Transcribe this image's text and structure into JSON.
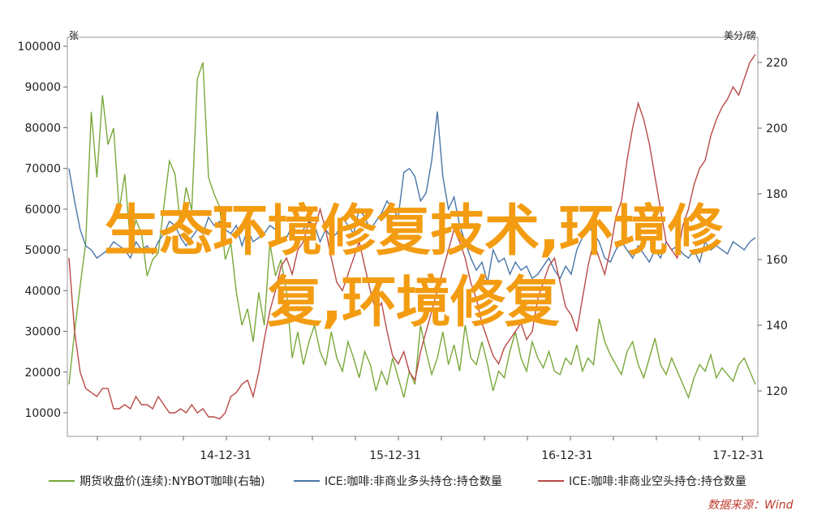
{
  "overlay": {
    "line1": "生态环境修复技术,环境修",
    "line2": "复,环境修复",
    "color": "#f39c12"
  },
  "source": "数据来源：Wind",
  "chart_data": {
    "type": "line",
    "title": "",
    "y_left": {
      "label": "张",
      "range": [
        5000,
        100000
      ],
      "ticks": [
        10000,
        20000,
        30000,
        40000,
        50000,
        60000,
        70000,
        80000,
        90000,
        100000
      ]
    },
    "y_right": {
      "label": "美分/磅",
      "range": [
        110,
        224
      ],
      "ticks": [
        120,
        140,
        160,
        180,
        200,
        220
      ]
    },
    "x_ticks": [
      "14-12-31",
      "15-12-31",
      "16-12-31",
      "17-12-31"
    ],
    "grid": false,
    "legend_position": "bottom",
    "series": [
      {
        "name": "期货收盘价(连续):NYBOT咖啡(右轴)",
        "axis": "right",
        "color": "#7aa83a",
        "values": [
          122,
          138,
          152,
          165,
          205,
          185,
          210,
          195,
          200,
          175,
          186,
          165,
          172,
          168,
          155,
          160,
          162,
          176,
          190,
          186,
          170,
          182,
          175,
          215,
          220,
          185,
          180,
          176,
          160,
          165,
          150,
          140,
          145,
          135,
          150,
          140,
          165,
          155,
          160,
          150,
          130,
          138,
          128,
          135,
          140,
          132,
          128,
          138,
          130,
          126,
          135,
          130,
          124,
          132,
          128,
          120,
          126,
          122,
          130,
          124,
          118,
          126,
          122,
          140,
          132,
          125,
          130,
          138,
          128,
          134,
          126,
          140,
          130,
          128,
          135,
          128,
          120,
          126,
          124,
          132,
          138,
          130,
          126,
          135,
          130,
          127,
          132,
          126,
          125,
          130,
          128,
          134,
          126,
          130,
          128,
          142,
          135,
          131,
          128,
          125,
          132,
          135,
          128,
          124,
          130,
          136,
          128,
          125,
          130,
          126,
          122,
          118,
          124,
          128,
          126,
          131,
          124,
          127,
          125,
          123,
          128,
          130,
          126,
          122
        ]
      },
      {
        "name": "ICE:咖啡:非商业多头持仓:持仓数量",
        "axis": "left",
        "color": "#4a76a8",
        "values": [
          70000,
          62000,
          55000,
          51000,
          50000,
          48000,
          49000,
          50000,
          52000,
          51000,
          50000,
          48000,
          52000,
          50000,
          51000,
          49000,
          52000,
          54000,
          57000,
          56000,
          53000,
          51000,
          53000,
          55000,
          54000,
          58000,
          56000,
          57000,
          55000,
          54000,
          56000,
          51000,
          55000,
          52000,
          53000,
          54000,
          56000,
          55000,
          52000,
          53000,
          56000,
          54000,
          55000,
          57000,
          56000,
          52000,
          55000,
          53000,
          54000,
          58000,
          56000,
          54000,
          60000,
          58000,
          55000,
          57000,
          59000,
          62000,
          60000,
          58000,
          69000,
          70000,
          68000,
          62000,
          64000,
          72000,
          84000,
          68000,
          60000,
          63000,
          56000,
          52000,
          48000,
          45000,
          47000,
          42000,
          50000,
          47000,
          48000,
          44000,
          47000,
          45000,
          46000,
          43000,
          44000,
          46000,
          48000,
          45000,
          43000,
          46000,
          44000,
          50000,
          53000,
          56000,
          54000,
          52000,
          48000,
          47000,
          50000,
          52000,
          50000,
          48000,
          51000,
          49000,
          47000,
          50000,
          48000,
          52000,
          50000,
          51000,
          49000,
          48000,
          50000,
          47000,
          52000,
          50000,
          51000,
          50000,
          49000,
          52000,
          51000,
          50000,
          52000,
          53000
        ]
      },
      {
        "name": "ICE:咖啡:非商业空头持仓:持仓数量",
        "axis": "left",
        "color": "#b94a48",
        "values": [
          48000,
          30000,
          20000,
          16000,
          15000,
          14000,
          16000,
          16000,
          11000,
          11000,
          12000,
          11000,
          14000,
          12000,
          12000,
          11000,
          14000,
          12000,
          10000,
          10000,
          11000,
          10000,
          12000,
          10000,
          11000,
          9000,
          9000,
          8500,
          10000,
          14000,
          15000,
          17000,
          18000,
          14000,
          20000,
          28000,
          35000,
          40000,
          46000,
          48000,
          44000,
          50000,
          52000,
          57000,
          55000,
          60000,
          55000,
          48000,
          42000,
          40000,
          44000,
          48000,
          52000,
          46000,
          40000,
          35000,
          37000,
          30000,
          24000,
          22000,
          25000,
          20000,
          18000,
          25000,
          30000,
          35000,
          40000,
          45000,
          50000,
          55000,
          52000,
          48000,
          42000,
          38000,
          32000,
          28000,
          24000,
          22000,
          26000,
          28000,
          30000,
          32000,
          28000,
          30000,
          38000,
          42000,
          46000,
          48000,
          42000,
          36000,
          34000,
          30000,
          38000,
          46000,
          52000,
          48000,
          44000,
          50000,
          58000,
          62000,
          72000,
          80000,
          86000,
          82000,
          76000,
          68000,
          60000,
          52000,
          50000,
          48000,
          56000,
          60000,
          66000,
          70000,
          72000,
          78000,
          82000,
          85000,
          87000,
          90000,
          88000,
          92000,
          96000,
          98000
        ]
      }
    ]
  }
}
